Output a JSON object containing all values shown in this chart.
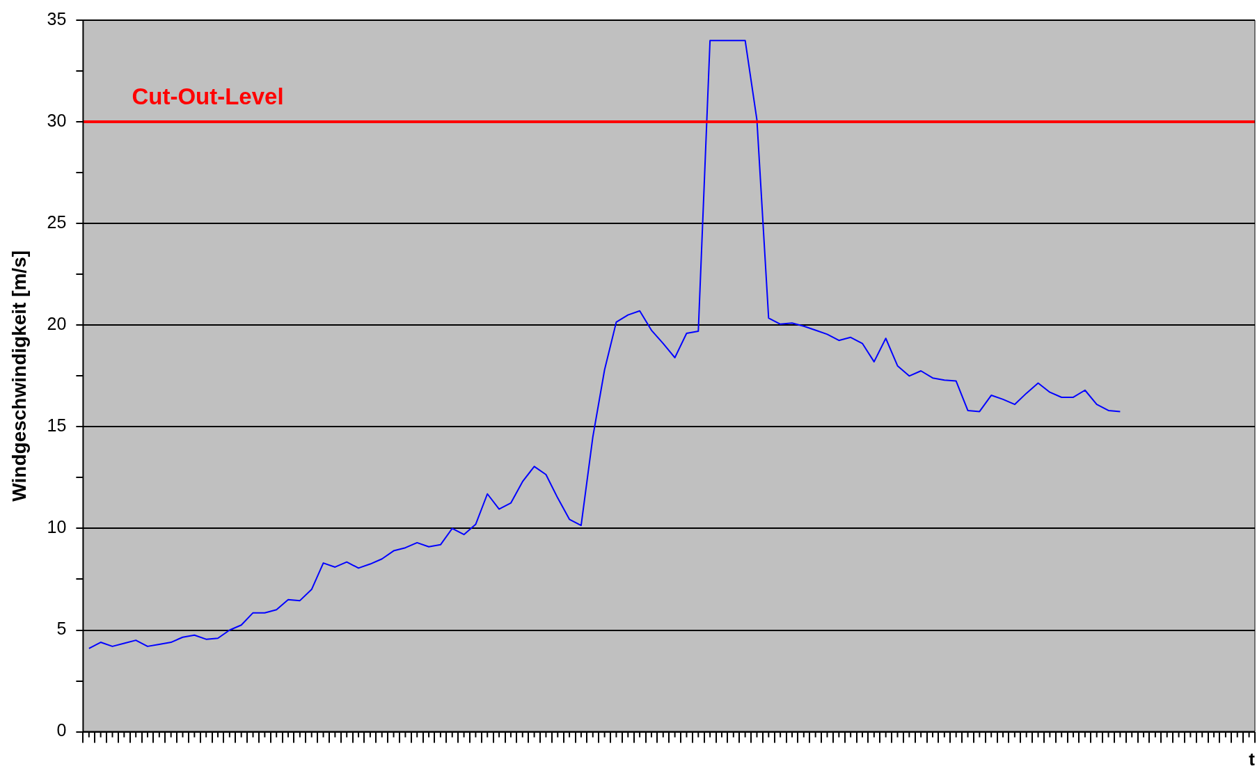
{
  "chart_data": {
    "type": "line",
    "ylabel": "Windgeschwindigkeit [m/s]",
    "xlabel": "t",
    "categories": [
      null,
      null,
      null,
      null,
      null,
      null,
      null,
      null,
      null,
      null,
      null,
      null,
      null,
      null,
      null,
      null,
      null,
      null,
      null,
      null,
      null,
      null,
      null,
      null,
      null,
      null,
      null,
      null,
      null,
      null,
      null,
      null,
      null,
      null,
      null,
      null,
      null,
      null,
      null,
      null,
      null,
      null,
      null,
      null,
      null,
      null,
      null,
      null,
      null,
      null,
      null,
      null,
      null,
      null,
      null,
      null,
      null,
      null,
      null,
      null,
      null,
      null,
      null,
      null,
      null,
      null,
      null,
      null,
      null,
      null,
      null,
      null,
      null,
      null,
      null,
      null,
      null,
      null,
      null,
      null,
      null,
      null,
      null,
      null,
      null,
      null,
      null,
      null,
      null,
      null,
      null,
      null,
      null,
      null,
      null,
      null,
      null,
      null,
      null,
      null
    ],
    "series": [
      {
        "color": "#0000ff",
        "values": [
          4.1,
          4.4,
          4.2,
          4.35,
          4.5,
          4.2,
          4.3,
          4.4,
          4.65,
          4.75,
          4.55,
          4.6,
          5.0,
          5.25,
          5.85,
          5.85,
          6.0,
          6.5,
          6.45,
          7.0,
          8.3,
          8.1,
          8.35,
          8.05,
          8.25,
          8.5,
          8.9,
          9.05,
          9.3,
          9.1,
          9.2,
          10.0,
          9.7,
          10.2,
          11.7,
          10.95,
          11.25,
          12.3,
          13.05,
          12.65,
          11.5,
          10.45,
          10.15,
          14.5,
          17.8,
          20.15,
          20.5,
          20.7,
          19.75,
          19.1,
          18.4,
          19.6,
          19.7,
          34,
          34,
          34,
          34,
          30.1,
          20.35,
          20.05,
          20.1,
          19.95,
          19.75,
          19.55,
          19.25,
          19.4,
          19.1,
          18.2,
          19.35,
          18.0,
          17.5,
          17.75,
          17.4,
          17.3,
          17.25,
          15.8,
          15.75,
          16.55,
          16.35,
          16.1,
          16.65,
          17.15,
          16.7,
          16.45,
          16.45,
          16.8,
          16.1,
          15.8,
          15.75,
          null,
          null,
          null,
          null,
          null,
          null,
          null,
          null,
          null,
          null,
          null
        ]
      }
    ],
    "ylim": [
      0,
      35
    ],
    "yticks": [
      0,
      {
        "value": 2.5,
        "label": null
      },
      5,
      {
        "value": 7.5,
        "label": null
      },
      10,
      {
        "value": 12.5,
        "label": null
      },
      15,
      {
        "value": 17.5,
        "label": null
      },
      20,
      {
        "value": 22.5,
        "label": null
      },
      25,
      {
        "value": 27.5,
        "label": null
      },
      30,
      {
        "value": 32.5,
        "label": null
      },
      35
    ],
    "ref_lines": [
      {
        "axis": "y",
        "value": 30,
        "label": "Cut-Out-Level",
        "color": "#ff0000"
      }
    ],
    "grid": "y",
    "legend": false,
    "marker": "none",
    "line_style": "solid"
  }
}
